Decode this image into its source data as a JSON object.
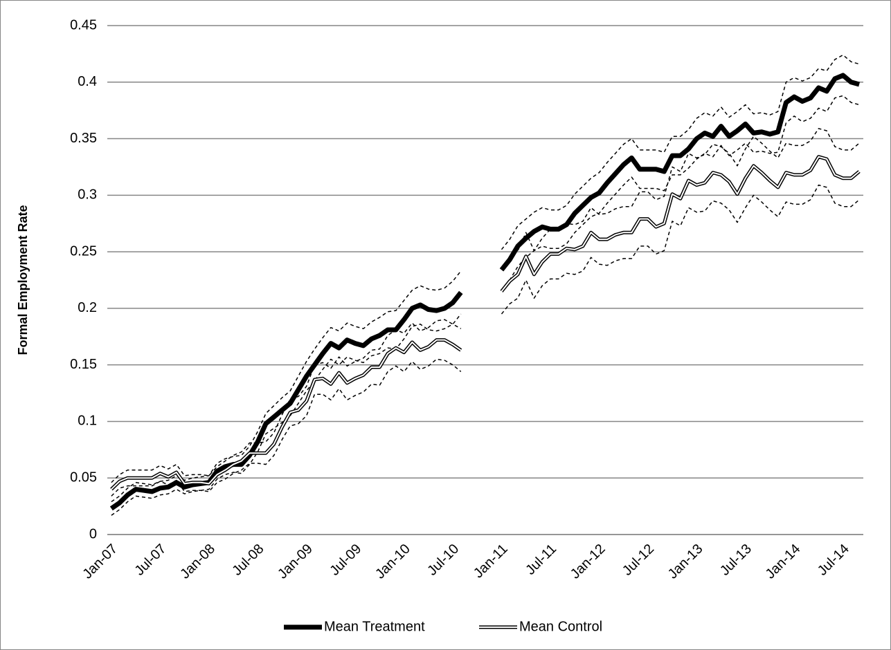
{
  "chart_data": {
    "type": "line",
    "y_label": "Formal Employment Rate",
    "categories": [
      "Jan-07",
      null,
      null,
      null,
      null,
      null,
      "Jul-07",
      null,
      null,
      null,
      null,
      null,
      "Jan-08",
      null,
      null,
      null,
      null,
      null,
      "Jul-08",
      null,
      null,
      null,
      null,
      null,
      "Jan-09",
      null,
      null,
      null,
      null,
      null,
      "Jul-09",
      null,
      null,
      null,
      null,
      null,
      "Jan-10",
      null,
      null,
      null,
      null,
      null,
      "Jul-10",
      null,
      null,
      null,
      null,
      null,
      "Jan-11",
      null,
      null,
      null,
      null,
      null,
      "Jul-11",
      null,
      null,
      null,
      null,
      null,
      "Jan-12",
      null,
      null,
      null,
      null,
      null,
      "Jul-12",
      null,
      null,
      null,
      null,
      null,
      "Jan-13",
      null,
      null,
      null,
      null,
      null,
      "Jul-13",
      null,
      null,
      null,
      null,
      null,
      "Jan-14",
      null,
      null,
      null,
      null,
      null,
      "Jul-14",
      null,
      null
    ],
    "ylim": [
      0,
      0.45
    ],
    "yticks": [
      0,
      0.05,
      0.1,
      0.15,
      0.2,
      0.25,
      0.3,
      0.35,
      0.4,
      0.45
    ],
    "grid": true,
    "legend": "bottom",
    "series": [
      {
        "name": "Mean Treatment",
        "color": "#000000",
        "line_style": "thick",
        "values": [
          0.023,
          0.028,
          0.035,
          0.04,
          0.039,
          0.038,
          0.041,
          0.042,
          0.046,
          0.042,
          0.044,
          0.045,
          0.046,
          0.056,
          0.06,
          0.062,
          0.062,
          0.07,
          0.082,
          0.098,
          0.104,
          0.11,
          0.116,
          0.128,
          0.14,
          0.15,
          0.16,
          0.169,
          0.165,
          0.172,
          0.169,
          0.167,
          0.173,
          0.176,
          0.181,
          0.181,
          0.19,
          0.2,
          0.203,
          0.199,
          0.198,
          0.2,
          0.205,
          0.214,
          null,
          null,
          null,
          null,
          0.234,
          0.243,
          0.255,
          0.262,
          0.268,
          0.272,
          0.27,
          0.27,
          0.274,
          0.284,
          0.291,
          0.298,
          0.302,
          0.311,
          0.319,
          0.327,
          0.333,
          0.323,
          0.323,
          0.323,
          0.321,
          0.335,
          0.335,
          0.341,
          0.35,
          0.355,
          0.352,
          0.361,
          0.352,
          0.357,
          0.363,
          0.355,
          0.356,
          0.354,
          0.356,
          0.382,
          0.387,
          0.383,
          0.386,
          0.395,
          0.392,
          0.403,
          0.406,
          0.4,
          0.398
        ]
      },
      {
        "name": "Mean Control",
        "color": "#000000",
        "line_style": "double",
        "values": [
          0.04,
          0.047,
          0.05,
          0.05,
          0.05,
          0.05,
          0.054,
          0.051,
          0.055,
          0.045,
          0.046,
          0.046,
          0.045,
          0.053,
          0.057,
          0.062,
          0.065,
          0.072,
          0.072,
          0.072,
          0.08,
          0.095,
          0.108,
          0.11,
          0.118,
          0.137,
          0.138,
          0.133,
          0.143,
          0.134,
          0.138,
          0.141,
          0.148,
          0.148,
          0.16,
          0.165,
          0.161,
          0.17,
          0.163,
          0.166,
          0.172,
          0.172,
          0.168,
          0.163,
          null,
          null,
          null,
          null,
          0.215,
          0.224,
          0.23,
          0.246,
          0.23,
          0.241,
          0.248,
          0.248,
          0.253,
          0.252,
          0.255,
          0.267,
          0.261,
          0.261,
          0.265,
          0.267,
          0.267,
          0.279,
          0.279,
          0.272,
          0.275,
          0.301,
          0.297,
          0.313,
          0.309,
          0.311,
          0.32,
          0.318,
          0.312,
          0.301,
          0.315,
          0.326,
          0.32,
          0.313,
          0.307,
          0.32,
          0.318,
          0.318,
          0.322,
          0.334,
          0.332,
          0.318,
          0.315,
          0.315,
          0.321
        ]
      },
      {
        "color": "#000000",
        "line_style": "dashed",
        "values": [
          0.029,
          0.034,
          0.041,
          0.046,
          0.045,
          0.044,
          0.047,
          0.048,
          0.052,
          0.048,
          0.05,
          0.051,
          0.052,
          0.063,
          0.067,
          0.069,
          0.07,
          0.078,
          0.091,
          0.107,
          0.114,
          0.121,
          0.127,
          0.14,
          0.153,
          0.164,
          0.174,
          0.183,
          0.18,
          0.187,
          0.184,
          0.182,
          0.188,
          0.192,
          0.197,
          0.198,
          0.207,
          0.216,
          0.22,
          0.217,
          0.216,
          0.218,
          0.224,
          0.233,
          null,
          null,
          null,
          null,
          0.252,
          0.261,
          0.273,
          0.279,
          0.285,
          0.289,
          0.287,
          0.287,
          0.291,
          0.301,
          0.308,
          0.315,
          0.32,
          0.329,
          0.337,
          0.345,
          0.35,
          0.34,
          0.34,
          0.34,
          0.338,
          0.352,
          0.352,
          0.358,
          0.368,
          0.373,
          0.37,
          0.378,
          0.369,
          0.374,
          0.38,
          0.372,
          0.373,
          0.371,
          0.374,
          0.4,
          0.404,
          0.401,
          0.404,
          0.412,
          0.41,
          0.42,
          0.424,
          0.418,
          0.416
        ]
      },
      {
        "color": "#000000",
        "line_style": "dashed",
        "values": [
          0.017,
          0.022,
          0.029,
          0.034,
          0.033,
          0.032,
          0.035,
          0.036,
          0.04,
          0.036,
          0.038,
          0.039,
          0.04,
          0.049,
          0.053,
          0.055,
          0.054,
          0.062,
          0.073,
          0.089,
          0.094,
          0.099,
          0.105,
          0.116,
          0.127,
          0.136,
          0.146,
          0.155,
          0.15,
          0.157,
          0.154,
          0.152,
          0.158,
          0.16,
          0.165,
          0.164,
          0.173,
          0.184,
          0.186,
          0.181,
          0.18,
          0.182,
          0.186,
          0.195,
          null,
          null,
          null,
          null,
          0.216,
          0.225,
          0.237,
          0.245,
          0.251,
          0.255,
          0.253,
          0.253,
          0.257,
          0.267,
          0.274,
          0.281,
          0.284,
          0.293,
          0.301,
          0.309,
          0.316,
          0.306,
          0.306,
          0.306,
          0.304,
          0.318,
          0.318,
          0.324,
          0.332,
          0.337,
          0.334,
          0.344,
          0.335,
          0.34,
          0.346,
          0.338,
          0.339,
          0.337,
          0.338,
          0.364,
          0.37,
          0.365,
          0.368,
          0.377,
          0.374,
          0.386,
          0.388,
          0.382,
          0.38
        ]
      },
      {
        "color": "#000000",
        "line_style": "dashed",
        "values": [
          0.046,
          0.053,
          0.057,
          0.057,
          0.057,
          0.057,
          0.061,
          0.058,
          0.062,
          0.052,
          0.053,
          0.053,
          0.052,
          0.06,
          0.065,
          0.07,
          0.073,
          0.081,
          0.081,
          0.082,
          0.09,
          0.106,
          0.12,
          0.122,
          0.131,
          0.15,
          0.152,
          0.147,
          0.157,
          0.149,
          0.153,
          0.156,
          0.163,
          0.164,
          0.176,
          0.181,
          0.178,
          0.187,
          0.18,
          0.183,
          0.189,
          0.19,
          0.186,
          0.182,
          null,
          null,
          null,
          null,
          0.235,
          0.244,
          0.251,
          0.267,
          0.251,
          0.262,
          0.27,
          0.27,
          0.275,
          0.274,
          0.277,
          0.289,
          0.283,
          0.284,
          0.288,
          0.29,
          0.29,
          0.303,
          0.303,
          0.296,
          0.299,
          0.325,
          0.321,
          0.337,
          0.333,
          0.336,
          0.345,
          0.343,
          0.337,
          0.326,
          0.341,
          0.352,
          0.346,
          0.339,
          0.333,
          0.346,
          0.344,
          0.344,
          0.348,
          0.359,
          0.357,
          0.343,
          0.34,
          0.34,
          0.346
        ]
      },
      {
        "color": "#000000",
        "line_style": "dashed",
        "values": [
          0.034,
          0.041,
          0.043,
          0.043,
          0.043,
          0.043,
          0.047,
          0.044,
          0.048,
          0.038,
          0.039,
          0.039,
          0.038,
          0.046,
          0.049,
          0.054,
          0.057,
          0.063,
          0.063,
          0.062,
          0.07,
          0.084,
          0.096,
          0.098,
          0.105,
          0.124,
          0.124,
          0.119,
          0.129,
          0.119,
          0.123,
          0.126,
          0.133,
          0.132,
          0.144,
          0.149,
          0.144,
          0.153,
          0.146,
          0.149,
          0.155,
          0.154,
          0.15,
          0.144,
          null,
          null,
          null,
          null,
          0.195,
          0.204,
          0.209,
          0.225,
          0.209,
          0.22,
          0.226,
          0.226,
          0.231,
          0.23,
          0.233,
          0.245,
          0.239,
          0.238,
          0.242,
          0.244,
          0.244,
          0.255,
          0.255,
          0.248,
          0.251,
          0.277,
          0.273,
          0.289,
          0.285,
          0.286,
          0.295,
          0.293,
          0.287,
          0.276,
          0.289,
          0.3,
          0.294,
          0.287,
          0.281,
          0.294,
          0.292,
          0.292,
          0.296,
          0.309,
          0.307,
          0.293,
          0.29,
          0.29,
          0.296
        ]
      }
    ]
  }
}
